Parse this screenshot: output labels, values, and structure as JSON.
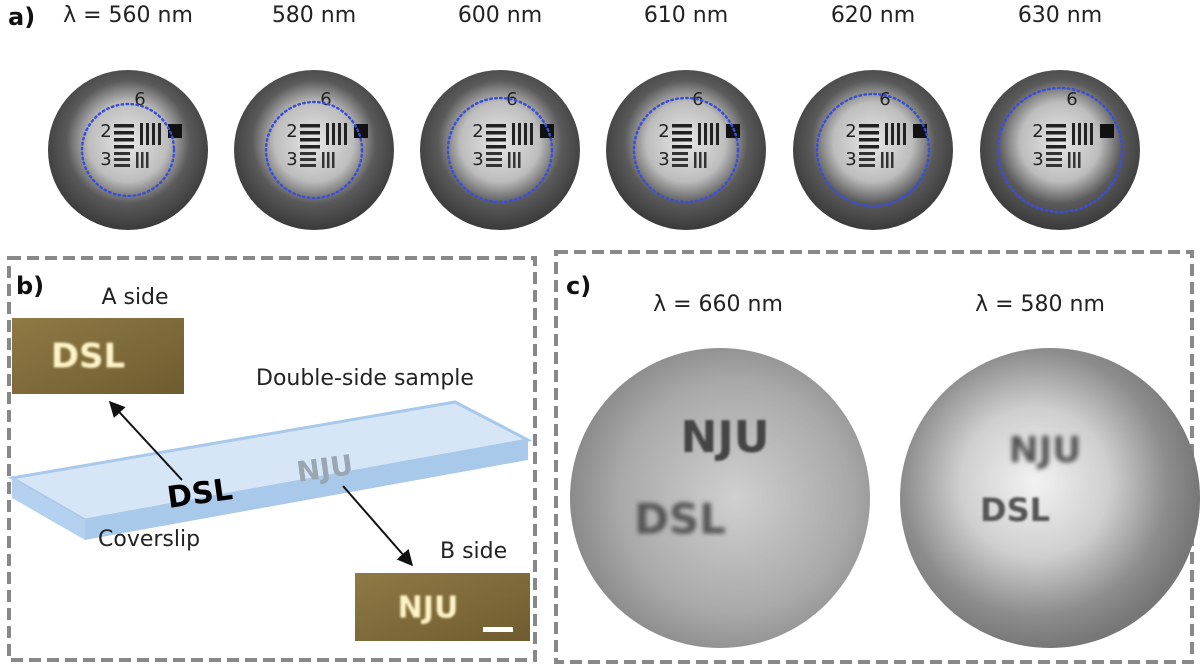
{
  "panel_a": {
    "label": "a)",
    "target_labels": [
      "6",
      "2",
      "3"
    ],
    "images": [
      {
        "label": "λ = 560 nm"
      },
      {
        "label": "580 nm"
      },
      {
        "label": "600 nm"
      },
      {
        "label": "610 nm"
      },
      {
        "label": "620 nm"
      },
      {
        "label": "630 nm"
      }
    ]
  },
  "panel_b": {
    "label": "b)",
    "a_side": {
      "caption": "A side",
      "text": "DSL"
    },
    "sample_caption": "Double-side sample",
    "sample_text_a": "DSL",
    "sample_text_b": "NJU",
    "coverslip_caption": "Coverslip",
    "b_side": {
      "caption": "B side",
      "text": "NJU"
    }
  },
  "panel_c": {
    "label": "c)",
    "images": [
      {
        "label": "λ = 660 nm",
        "text_focus": "NJU",
        "text_blur": "DSL"
      },
      {
        "label": "λ = 580 nm",
        "text_focus": "DSL",
        "text_blur": "NJU"
      }
    ]
  }
}
